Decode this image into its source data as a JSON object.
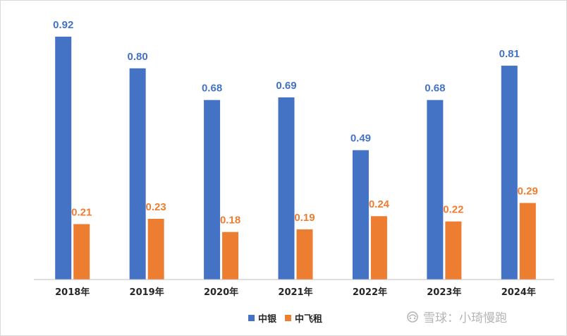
{
  "chart_data": {
    "type": "bar",
    "categories": [
      "2018年",
      "2019年",
      "2020年",
      "2021年",
      "2022年",
      "2023年",
      "2024年"
    ],
    "series": [
      {
        "name": "中银",
        "color": "#4472c4",
        "values": [
          0.92,
          0.8,
          0.68,
          0.69,
          0.49,
          0.68,
          0.81
        ]
      },
      {
        "name": "中飞租",
        "color": "#ed7d31",
        "values": [
          0.21,
          0.23,
          0.18,
          0.19,
          0.24,
          0.22,
          0.29
        ]
      }
    ],
    "ylim": [
      0,
      1.0
    ],
    "grid": false,
    "legend_position": "bottom"
  },
  "watermark": {
    "text": "雪球：小琦慢跑",
    "icon": "snowball-logo-icon"
  }
}
